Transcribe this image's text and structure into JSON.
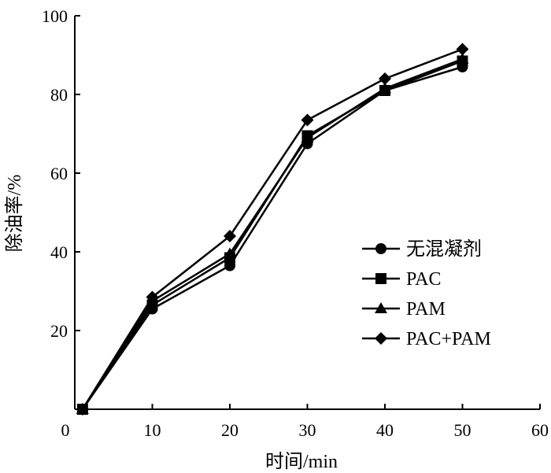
{
  "chart_data": {
    "type": "line",
    "title": "",
    "xlabel": "时间/min",
    "ylabel": "除油率/%",
    "xlim": [
      0,
      60
    ],
    "ylim": [
      0,
      100
    ],
    "x_ticks": [
      "0",
      "10",
      "20",
      "30",
      "40",
      "50",
      "60"
    ],
    "y_ticks": [
      "20",
      "40",
      "60",
      "80",
      "100"
    ],
    "grid": false,
    "legend_position": "right",
    "x": [
      1,
      10,
      20,
      30,
      40,
      50
    ],
    "series": [
      {
        "name": "无混凝剂",
        "marker": "circle",
        "values": [
          0,
          25.5,
          36.5,
          67.5,
          81.0,
          87.0
        ]
      },
      {
        "name": "PAC",
        "marker": "square",
        "values": [
          0,
          26.5,
          38.5,
          69.5,
          81.0,
          88.5
        ]
      },
      {
        "name": "PAM",
        "marker": "triangle",
        "values": [
          0,
          27.5,
          39.5,
          69.0,
          81.5,
          89.0
        ]
      },
      {
        "name": "PAC+PAM",
        "marker": "diamond",
        "values": [
          0,
          28.5,
          44.0,
          73.5,
          84.0,
          91.5
        ]
      }
    ],
    "colors": {
      "line": "#000000",
      "marker": "#000000",
      "background": "#ffffff"
    }
  }
}
